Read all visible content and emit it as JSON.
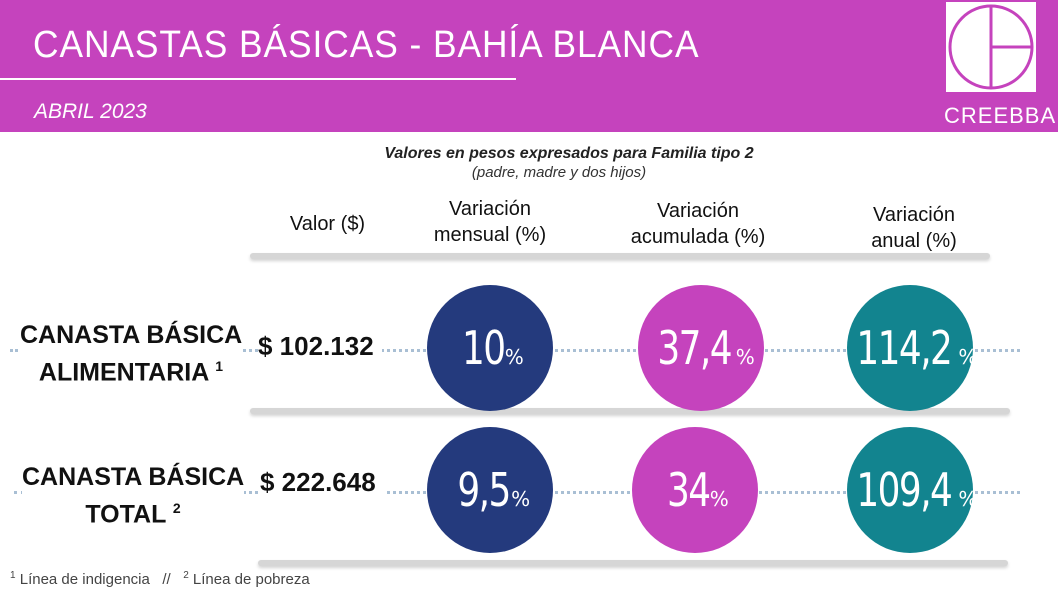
{
  "header": {
    "title": "CANASTAS  BÁSICAS - BAHÍA  BLANCA",
    "date": "ABRIL 2023",
    "logo_text": "CREEBBA"
  },
  "subtitle": {
    "main": "Valores en pesos expresados para Familia tipo 2",
    "sub": "(padre, madre y dos hijos)"
  },
  "columns": {
    "valor": "Valor ($)",
    "mensual_1": "Variación",
    "mensual_2": "mensual (%)",
    "acumulada_1": "Variación",
    "acumulada_2": "acumulada (%)",
    "anual_1": "Variación",
    "anual_2": "anual (%)"
  },
  "rows": [
    {
      "label_1": "CANASTA BÁSICA",
      "label_2": "ALIMENTARIA",
      "sup": "1",
      "valor": "$ 102.132",
      "mensual": "10",
      "acumulada": "37,4",
      "anual": "114,2"
    },
    {
      "label_1": "CANASTA BÁSICA",
      "label_2": "TOTAL",
      "sup": "2",
      "valor": "$ 222.648",
      "mensual": "9,5",
      "acumulada": "34",
      "anual": "109,4"
    }
  ],
  "pct_symbol": "%",
  "footnotes": {
    "sup1": "1",
    "text1": " Línea de indigencia   //   ",
    "sup2": "2",
    "text2": " Línea de pobreza"
  },
  "colors": {
    "header": "#c543bd",
    "navy": "#243a7d",
    "magenta": "#c543bd",
    "teal": "#12848f"
  }
}
